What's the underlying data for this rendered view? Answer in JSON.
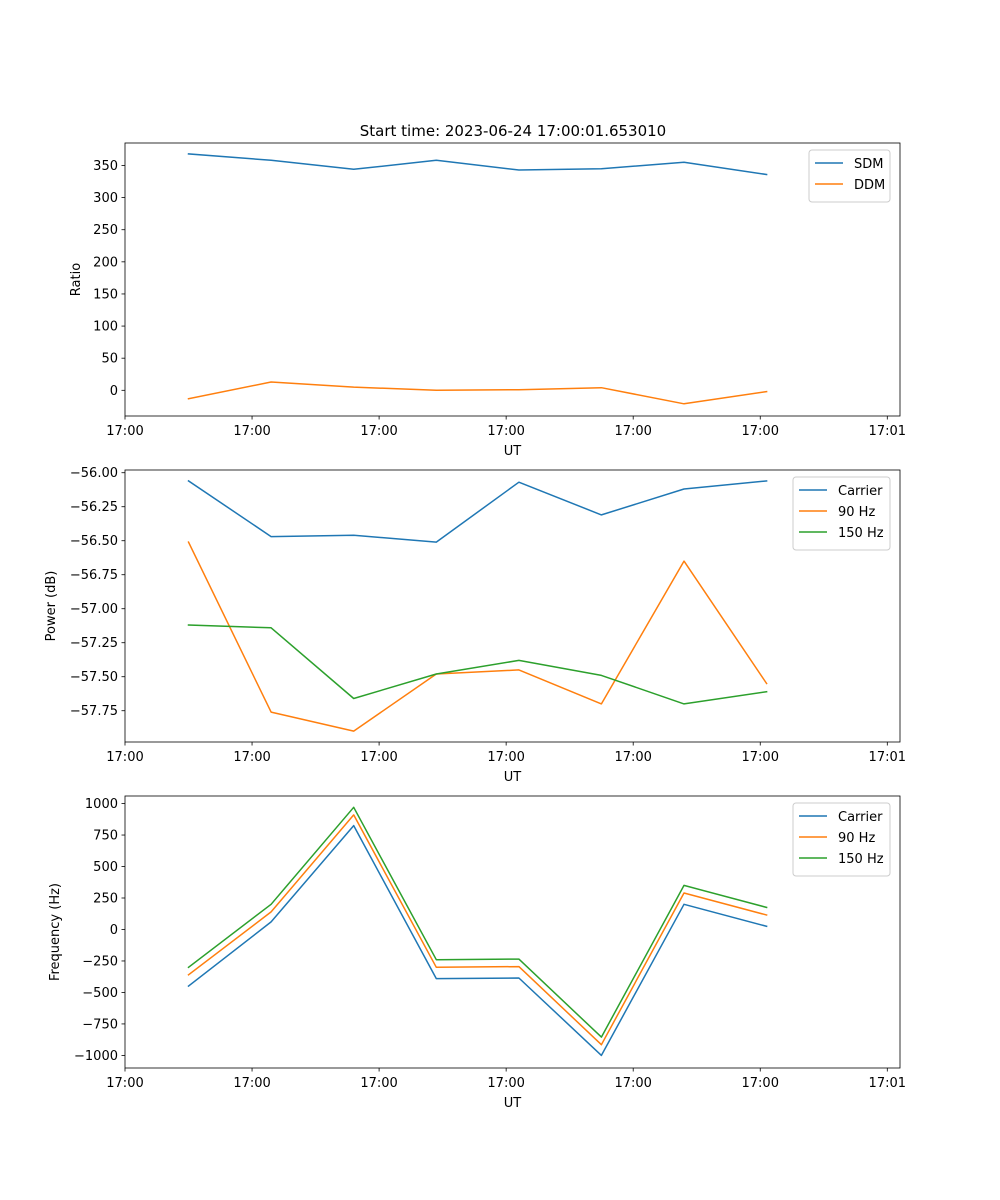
{
  "figure": {
    "title": "Start time: 2023-06-24 17:00:01.653010"
  },
  "chart_data": [
    {
      "type": "line",
      "title": "Start time: 2023-06-24 17:00:01.653010",
      "xlabel": "UT",
      "ylabel": "Ratio",
      "xlim": [
        0,
        6.1
      ],
      "ylim": [
        -40,
        385
      ],
      "x": [
        0.5,
        1.15,
        1.8,
        2.45,
        3.1,
        3.75,
        4.4,
        5.05
      ],
      "x_ticks": [
        0,
        1,
        2,
        3,
        4,
        5,
        6
      ],
      "x_tick_labels": [
        "17:00",
        "17:00",
        "17:00",
        "17:00",
        "17:00",
        "17:00",
        "17:01"
      ],
      "y_ticks": [
        0,
        50,
        100,
        150,
        200,
        250,
        300,
        350
      ],
      "y_tick_labels": [
        "0",
        "50",
        "100",
        "150",
        "200",
        "250",
        "300",
        "350"
      ],
      "grid": false,
      "legend_position": "top-right",
      "series": [
        {
          "name": "SDM",
          "color": "#1f77b4",
          "values": [
            368,
            358,
            344,
            358,
            343,
            345,
            355,
            336
          ]
        },
        {
          "name": "DDM",
          "color": "#ff7f0e",
          "values": [
            -13,
            13,
            5,
            0,
            1,
            4,
            -21,
            -2
          ]
        }
      ]
    },
    {
      "type": "line",
      "title": "",
      "xlabel": "UT",
      "ylabel": "Power (dB)",
      "xlim": [
        0,
        6.1
      ],
      "ylim": [
        -57.98,
        -55.98
      ],
      "x": [
        0.5,
        1.15,
        1.8,
        2.45,
        3.1,
        3.75,
        4.4,
        5.05
      ],
      "x_ticks": [
        0,
        1,
        2,
        3,
        4,
        5,
        6
      ],
      "x_tick_labels": [
        "17:00",
        "17:00",
        "17:00",
        "17:00",
        "17:00",
        "17:00",
        "17:01"
      ],
      "y_ticks": [
        -56.0,
        -56.25,
        -56.5,
        -56.75,
        -57.0,
        -57.25,
        -57.5,
        -57.75
      ],
      "y_tick_labels": [
        "−56.00",
        "−56.25",
        "−56.50",
        "−56.75",
        "−57.00",
        "−57.25",
        "−57.50",
        "−57.75"
      ],
      "grid": false,
      "legend_position": "top-right",
      "series": [
        {
          "name": "Carrier",
          "color": "#1f77b4",
          "values": [
            -56.06,
            -56.47,
            -56.46,
            -56.51,
            -56.07,
            -56.31,
            -56.12,
            -56.06
          ]
        },
        {
          "name": "90 Hz",
          "color": "#ff7f0e",
          "values": [
            -56.51,
            -57.76,
            -57.9,
            -57.48,
            -57.45,
            -57.7,
            -56.65,
            -57.55
          ]
        },
        {
          "name": "150 Hz",
          "color": "#2ca02c",
          "values": [
            -57.12,
            -57.14,
            -57.66,
            -57.48,
            -57.38,
            -57.49,
            -57.7,
            -57.61
          ]
        }
      ]
    },
    {
      "type": "line",
      "title": "",
      "xlabel": "UT",
      "ylabel": "Frequency (Hz)",
      "xlim": [
        0,
        6.1
      ],
      "ylim": [
        -1100,
        1060
      ],
      "x": [
        0.5,
        1.15,
        1.8,
        2.45,
        3.1,
        3.75,
        4.4,
        5.05
      ],
      "x_ticks": [
        0,
        1,
        2,
        3,
        4,
        5,
        6
      ],
      "x_tick_labels": [
        "17:00",
        "17:00",
        "17:00",
        "17:00",
        "17:00",
        "17:00",
        "17:01"
      ],
      "y_ticks": [
        -1000,
        -750,
        -500,
        -250,
        0,
        250,
        500,
        750,
        1000
      ],
      "y_tick_labels": [
        "−1000",
        "−750",
        "−500",
        "−250",
        "0",
        "250",
        "500",
        "750",
        "1000"
      ],
      "grid": false,
      "legend_position": "top-right",
      "series": [
        {
          "name": "Carrier",
          "color": "#1f77b4",
          "values": [
            -450,
            60,
            825,
            -390,
            -385,
            -1000,
            200,
            25
          ]
        },
        {
          "name": "90 Hz",
          "color": "#ff7f0e",
          "values": [
            -360,
            140,
            910,
            -300,
            -295,
            -915,
            290,
            115
          ]
        },
        {
          "name": "150 Hz",
          "color": "#2ca02c",
          "values": [
            -300,
            200,
            970,
            -240,
            -235,
            -855,
            350,
            175
          ]
        }
      ]
    }
  ]
}
